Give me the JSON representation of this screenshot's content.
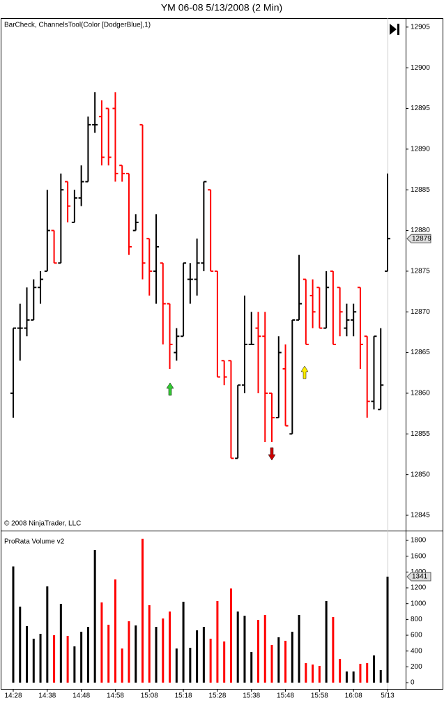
{
  "chart_data": [
    {
      "type": "ohlc",
      "title": "YM 06-08  5/13/2008 (2 Min)",
      "subtitle": "BarCheck, ChannelsTool(Color [DodgerBlue],1)",
      "footnote": "© 2008 NinjaTrader, LLC",
      "categories": [
        "14:28",
        null,
        null,
        null,
        null,
        "14:38",
        null,
        null,
        null,
        null,
        "14:48",
        null,
        null,
        null,
        null,
        "14:58",
        null,
        null,
        null,
        null,
        "15:08",
        null,
        null,
        null,
        null,
        "15:18",
        null,
        null,
        null,
        null,
        "15:28",
        null,
        null,
        null,
        null,
        "15:38",
        null,
        null,
        null,
        null,
        "15:48",
        null,
        null,
        null,
        null,
        "15:58",
        null,
        null,
        null,
        null,
        "16:08",
        null,
        null,
        null,
        null,
        "5/13"
      ],
      "open": [
        12860,
        12868,
        12868,
        12869,
        12873,
        12875,
        12880,
        12876,
        12886,
        12881,
        12884,
        12886,
        12893,
        12894,
        12895,
        12895,
        12888,
        12887,
        12880,
        12893,
        12879,
        12875,
        12876,
        12871,
        12865,
        12867,
        12874,
        12874,
        12876,
        12885,
        12875,
        12864,
        12864,
        12852,
        12861,
        12866,
        12868,
        12867,
        12860,
        12857,
        12863,
        12855,
        12869,
        12874,
        12872,
        12873,
        12868,
        12875,
        12873,
        12868,
        12869,
        12873,
        12867,
        12859,
        12858,
        12875
      ],
      "high": [
        12868,
        12871,
        12873,
        12874,
        12875,
        12885,
        12880,
        12887,
        12886,
        12885,
        12888,
        12894,
        12897,
        12896,
        12895,
        12897,
        12888,
        12887,
        12882,
        12893,
        12879,
        12882,
        12876,
        12871,
        12868,
        12876,
        12876,
        12879,
        12886,
        12885,
        12875,
        12864,
        12864,
        12861,
        12872,
        12870,
        12870,
        12870,
        12860,
        12867,
        12866,
        12869,
        12877,
        12874,
        12874,
        12873,
        12875,
        12875,
        12873,
        12871,
        12871,
        12873,
        12867,
        12867,
        12868,
        12887
      ],
      "low": [
        12857,
        12864,
        12867,
        12869,
        12871,
        12875,
        12876,
        12876,
        12881,
        12881,
        12883,
        12886,
        12892,
        12888,
        12888,
        12886,
        12886,
        12877,
        12880,
        12874,
        12872,
        12871,
        12866,
        12863,
        12864,
        12867,
        12871,
        12872,
        12875,
        12875,
        12862,
        12861,
        12852,
        12852,
        12860,
        12866,
        12860,
        12854,
        12854,
        12857,
        12856,
        12855,
        12869,
        12866,
        12868,
        12868,
        12868,
        12866,
        12867,
        12867,
        12867,
        12863,
        12857,
        12858,
        12858,
        12875
      ],
      "close": [
        12868,
        12868,
        12869,
        12873,
        12874,
        12880,
        12876,
        12885,
        12883,
        12884,
        12886,
        12893,
        12893,
        12889,
        12889,
        12887,
        12887,
        12878,
        12881,
        12876,
        12875,
        12878,
        12871,
        12866,
        12867,
        12876,
        12874,
        12876,
        12886,
        12875,
        12862,
        12862,
        12852,
        12861,
        12866,
        12866,
        12867,
        12860,
        12857,
        12865,
        12856,
        12869,
        12871,
        12866,
        12870,
        12868,
        12873,
        12866,
        12870,
        12869,
        12870,
        12866,
        12859,
        12867,
        12861,
        12879
      ],
      "up_color": "#000000",
      "down_color": "#ff0000",
      "ylim": [
        12843.2,
        12906.1
      ],
      "yticks": [
        12845,
        12850,
        12855,
        12860,
        12865,
        12870,
        12875,
        12880,
        12885,
        12890,
        12895,
        12900,
        12905
      ]
    },
    {
      "type": "bar",
      "title": "ProRata Volume v2",
      "values": [
        1470,
        962,
        715,
        556,
        618,
        1218,
        600,
        997,
        591,
        459,
        644,
        706,
        1677,
        1015,
        733,
        1306,
        432,
        777,
        724,
        1820,
        980,
        706,
        812,
        900,
        432,
        1024,
        441,
        662,
        706,
        556,
        1033,
        521,
        1192,
        900,
        847,
        388,
        794,
        856,
        477,
        574,
        530,
        644,
        856,
        247,
        229,
        212,
        1033,
        830,
        300,
        141,
        141,
        238,
        247,
        344,
        159,
        1341
      ],
      "ylim": [
        -79,
        1915
      ],
      "yticks": [
        0,
        200,
        400,
        600,
        800,
        1000,
        1200,
        1400,
        1600,
        1800
      ]
    }
  ]
}
